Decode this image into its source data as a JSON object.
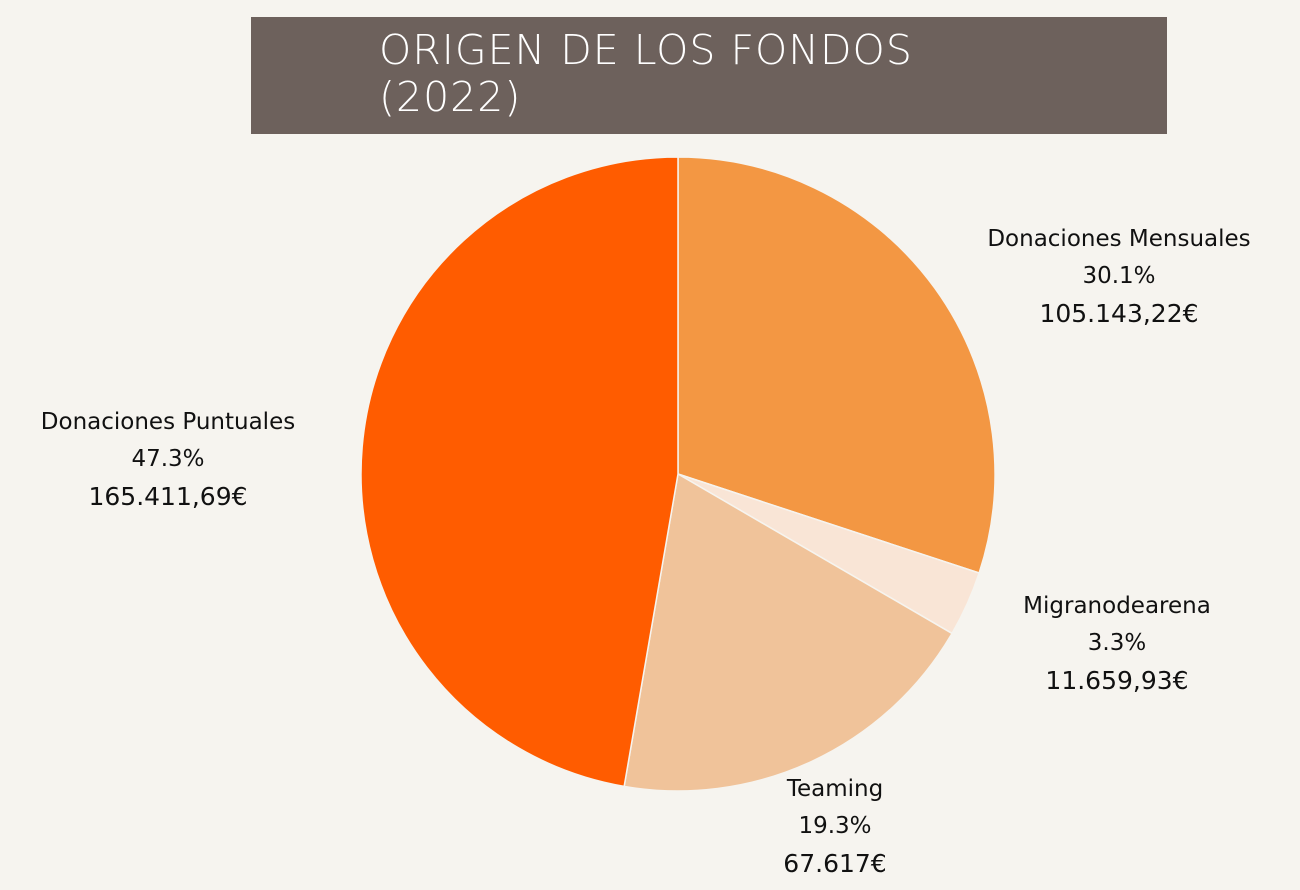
{
  "chart_data": {
    "type": "pie",
    "title": "ORIGEN DE LOS FONDOS\n(2022)",
    "slices": [
      {
        "name": "Donaciones Mensuales",
        "percent_label": "30.1%",
        "amount_label": "105.143,22€",
        "value": 105143.22,
        "color": "#f39743"
      },
      {
        "name": "Migranodearena",
        "percent_label": "3.3%",
        "amount_label": "11.659,93€",
        "value": 11659.93,
        "color": "#f9e5d6"
      },
      {
        "name": "Teaming",
        "percent_label": "19.3%",
        "amount_label": "67.617€",
        "value": 67617,
        "color": "#f0c39a"
      },
      {
        "name": "Donaciones Puntuales",
        "percent_label": "47.3%",
        "amount_label": "165.411,69€",
        "value": 165411.69,
        "color": "#ff5c00"
      }
    ],
    "legend": "none",
    "start_angle": "12 o'clock",
    "direction": "clockwise"
  }
}
